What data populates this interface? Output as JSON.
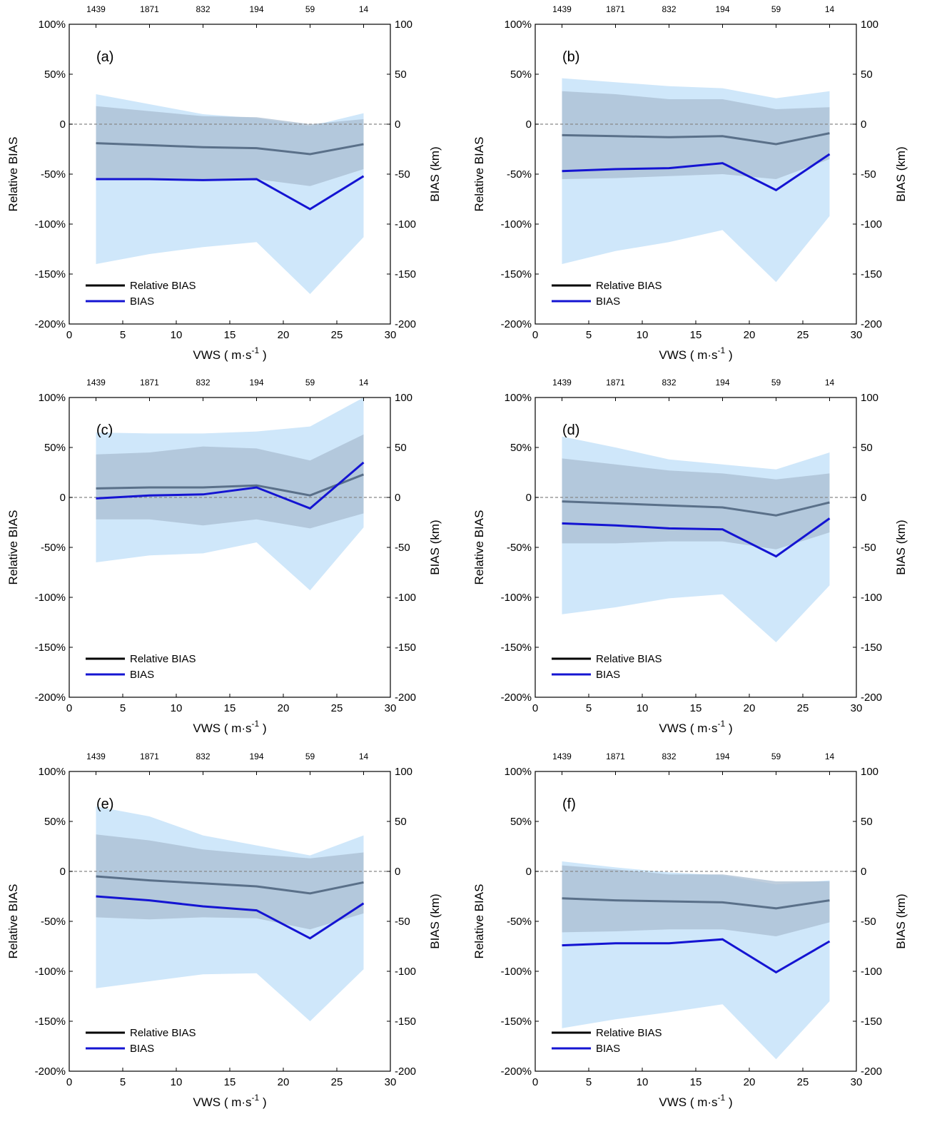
{
  "legend": {
    "relative": "Relative BIAS",
    "bias": "BIAS"
  },
  "colors": {
    "relative_line": "#5a7089",
    "bias_line": "#1414d2",
    "bias_band": "#cfe7fa",
    "relative_band": "#aabdd1",
    "zero_line": "#888888"
  },
  "chart_data": [
    {
      "type": "line",
      "panel_label": "(a)",
      "xlabel": "VWS ( m·s",
      "xlabel_exp": "-1",
      "xlabel_end": ")",
      "ylabel": "Relative BIAS",
      "ylabel_right": "BIAS (km)",
      "xlim": [
        0,
        30
      ],
      "ylim": [
        -200,
        100
      ],
      "ylim_right": [
        -200,
        100
      ],
      "x_ticks": [
        "0",
        "5",
        "10",
        "15",
        "20",
        "25",
        "30"
      ],
      "y_ticks_left": [
        "100%",
        "50%",
        "0",
        "-50%",
        "-100%",
        "-150%",
        "-200%"
      ],
      "y_ticks_right": [
        "100",
        "50",
        "0",
        "-50",
        "-100",
        "-150",
        "-200"
      ],
      "top_ticks": [
        "1439",
        "1871",
        "832",
        "194",
        "59",
        "14"
      ],
      "x": [
        2.5,
        7.5,
        12.5,
        17.5,
        22.5,
        27.5
      ],
      "series": [
        {
          "name": "Relative BIAS",
          "values": [
            -19,
            -21,
            -23,
            -24,
            -30,
            -20
          ],
          "band": [
            [
              -55,
              18
            ],
            [
              -54,
              13
            ],
            [
              -55,
              8
            ],
            [
              -55,
              7
            ],
            [
              -62,
              0
            ],
            [
              -45,
              5
            ]
          ]
        },
        {
          "name": "BIAS",
          "values": [
            -55,
            -55,
            -56,
            -55,
            -85,
            -52
          ],
          "band": [
            [
              -140,
              30
            ],
            [
              -130,
              20
            ],
            [
              -123,
              10
            ],
            [
              -118,
              6
            ],
            [
              -170,
              -2
            ],
            [
              -113,
              11
            ]
          ]
        }
      ]
    },
    {
      "type": "line",
      "panel_label": "(b)",
      "xlabel": "VWS ( m·s",
      "xlabel_exp": "-1",
      "xlabel_end": ")",
      "ylabel": "Relative BIAS",
      "ylabel_right": "BIAS (km)",
      "xlim": [
        0,
        30
      ],
      "ylim": [
        -200,
        100
      ],
      "ylim_right": [
        -200,
        100
      ],
      "x_ticks": [
        "0",
        "5",
        "10",
        "15",
        "20",
        "25",
        "30"
      ],
      "y_ticks_left": [
        "100%",
        "50%",
        "0",
        "-50%",
        "-100%",
        "-150%",
        "-200%"
      ],
      "y_ticks_right": [
        "100",
        "50",
        "0",
        "-50",
        "-100",
        "-150",
        "-200"
      ],
      "top_ticks": [
        "1439",
        "1871",
        "832",
        "194",
        "59",
        "14"
      ],
      "x": [
        2.5,
        7.5,
        12.5,
        17.5,
        22.5,
        27.5
      ],
      "series": [
        {
          "name": "Relative BIAS",
          "values": [
            -11,
            -12,
            -13,
            -12,
            -20,
            -9
          ],
          "band": [
            [
              -55,
              33
            ],
            [
              -54,
              30
            ],
            [
              -52,
              25
            ],
            [
              -50,
              25
            ],
            [
              -55,
              15
            ],
            [
              -35,
              17
            ]
          ]
        },
        {
          "name": "BIAS",
          "values": [
            -47,
            -45,
            -44,
            -39,
            -66,
            -30
          ],
          "band": [
            [
              -140,
              46
            ],
            [
              -127,
              42
            ],
            [
              -118,
              38
            ],
            [
              -106,
              36
            ],
            [
              -158,
              26
            ],
            [
              -92,
              33
            ]
          ]
        }
      ]
    },
    {
      "type": "line",
      "panel_label": "(c)",
      "xlabel": "VWS ( m·s",
      "xlabel_exp": "-1",
      "xlabel_end": ")",
      "ylabel": "Relative BIAS",
      "ylabel_right": "BIAS (km)",
      "xlim": [
        0,
        30
      ],
      "ylim": [
        -200,
        100
      ],
      "ylim_right": [
        -200,
        100
      ],
      "x_ticks": [
        "0",
        "5",
        "10",
        "15",
        "20",
        "25",
        "30"
      ],
      "y_ticks_left": [
        "100%",
        "50%",
        "0",
        "-50%",
        "-100%",
        "-150%",
        "-200%"
      ],
      "y_ticks_right": [
        "100",
        "50",
        "0",
        "-50",
        "-100",
        "-150",
        "-200"
      ],
      "top_ticks": [
        "1439",
        "1871",
        "832",
        "194",
        "59",
        "14"
      ],
      "x": [
        2.5,
        7.5,
        12.5,
        17.5,
        22.5,
        27.5
      ],
      "series": [
        {
          "name": "Relative BIAS",
          "values": [
            9,
            10,
            10,
            12,
            2,
            23
          ],
          "band": [
            [
              -22,
              43
            ],
            [
              -22,
              45
            ],
            [
              -28,
              51
            ],
            [
              -22,
              49
            ],
            [
              -31,
              37
            ],
            [
              -16,
              63
            ]
          ]
        },
        {
          "name": "BIAS",
          "values": [
            -1,
            2,
            3,
            10,
            -11,
            35
          ],
          "band": [
            [
              -65,
              65
            ],
            [
              -58,
              64
            ],
            [
              -56,
              64
            ],
            [
              -45,
              66
            ],
            [
              -93,
              71
            ],
            [
              -30,
              100
            ]
          ]
        }
      ]
    },
    {
      "type": "line",
      "panel_label": "(d)",
      "xlabel": "VWS ( m·s",
      "xlabel_exp": "-1",
      "xlabel_end": ")",
      "ylabel": "Relative BIAS",
      "ylabel_right": "BIAS (km)",
      "xlim": [
        0,
        30
      ],
      "ylim": [
        -200,
        100
      ],
      "ylim_right": [
        -200,
        100
      ],
      "x_ticks": [
        "0",
        "5",
        "10",
        "15",
        "20",
        "25",
        "30"
      ],
      "y_ticks_left": [
        "100%",
        "50%",
        "0",
        "-50%",
        "-100%",
        "-150%",
        "-200%"
      ],
      "y_ticks_right": [
        "100",
        "50",
        "0",
        "-50",
        "-100",
        "-150",
        "-200"
      ],
      "top_ticks": [
        "1439",
        "1871",
        "832",
        "194",
        "59",
        "14"
      ],
      "x": [
        2.5,
        7.5,
        12.5,
        17.5,
        22.5,
        27.5
      ],
      "series": [
        {
          "name": "Relative BIAS",
          "values": [
            -4,
            -6,
            -8,
            -10,
            -18,
            -5
          ],
          "band": [
            [
              -46,
              39
            ],
            [
              -46,
              33
            ],
            [
              -44,
              27
            ],
            [
              -44,
              24
            ],
            [
              -52,
              18
            ],
            [
              -35,
              24
            ]
          ]
        },
        {
          "name": "BIAS",
          "values": [
            -26,
            -28,
            -31,
            -32,
            -59,
            -21
          ],
          "band": [
            [
              -117,
              61
            ],
            [
              -110,
              50
            ],
            [
              -101,
              38
            ],
            [
              -97,
              33
            ],
            [
              -145,
              28
            ],
            [
              -88,
              45
            ]
          ]
        }
      ]
    },
    {
      "type": "line",
      "panel_label": "(e)",
      "xlabel": "VWS ( m·s",
      "xlabel_exp": "-1",
      "xlabel_end": ")",
      "ylabel": "Relative BIAS",
      "ylabel_right": "BIAS (km)",
      "xlim": [
        0,
        30
      ],
      "ylim": [
        -200,
        100
      ],
      "ylim_right": [
        -200,
        100
      ],
      "x_ticks": [
        "0",
        "5",
        "10",
        "15",
        "20",
        "25",
        "30"
      ],
      "y_ticks_left": [
        "100%",
        "50%",
        "0",
        "-50%",
        "-100%",
        "-150%",
        "-200%"
      ],
      "y_ticks_right": [
        "100",
        "50",
        "0",
        "-50",
        "-100",
        "-150",
        "-200"
      ],
      "top_ticks": [
        "1439",
        "1871",
        "832",
        "194",
        "59",
        "14"
      ],
      "x": [
        2.5,
        7.5,
        12.5,
        17.5,
        22.5,
        27.5
      ],
      "series": [
        {
          "name": "Relative BIAS",
          "values": [
            -5,
            -9,
            -12,
            -15,
            -22,
            -11
          ],
          "band": [
            [
              -46,
              37
            ],
            [
              -48,
              31
            ],
            [
              -46,
              22
            ],
            [
              -47,
              17
            ],
            [
              -58,
              13
            ],
            [
              -42,
              19
            ]
          ]
        },
        {
          "name": "BIAS",
          "values": [
            -25,
            -29,
            -35,
            -39,
            -67,
            -32
          ],
          "band": [
            [
              -117,
              65
            ],
            [
              -110,
              55
            ],
            [
              -103,
              36
            ],
            [
              -102,
              26
            ],
            [
              -150,
              16
            ],
            [
              -98,
              36
            ]
          ]
        }
      ]
    },
    {
      "type": "line",
      "panel_label": "(f)",
      "xlabel": "VWS ( m·s",
      "xlabel_exp": "-1",
      "xlabel_end": ")",
      "ylabel": "Relative BIAS",
      "ylabel_right": "BIAS (km)",
      "xlim": [
        0,
        30
      ],
      "ylim": [
        -200,
        100
      ],
      "ylim_right": [
        -200,
        100
      ],
      "x_ticks": [
        "0",
        "5",
        "10",
        "15",
        "20",
        "25",
        "30"
      ],
      "y_ticks_left": [
        "100%",
        "50%",
        "0",
        "-50%",
        "-100%",
        "-150%",
        "-200%"
      ],
      "y_ticks_right": [
        "100",
        "50",
        "0",
        "-50",
        "-100",
        "-150",
        "-200"
      ],
      "top_ticks": [
        "1439",
        "1871",
        "832",
        "194",
        "59",
        "14"
      ],
      "x": [
        2.5,
        7.5,
        12.5,
        17.5,
        22.5,
        27.5
      ],
      "series": [
        {
          "name": "Relative BIAS",
          "values": [
            -27,
            -29,
            -30,
            -31,
            -37,
            -29
          ],
          "band": [
            [
              -61,
              6
            ],
            [
              -60,
              2
            ],
            [
              -58,
              -3
            ],
            [
              -58,
              -3
            ],
            [
              -65,
              -10
            ],
            [
              -51,
              -10
            ]
          ]
        },
        {
          "name": "BIAS",
          "values": [
            -74,
            -72,
            -72,
            -68,
            -101,
            -70
          ],
          "band": [
            [
              -157,
              10
            ],
            [
              -148,
              4
            ],
            [
              -141,
              -1
            ],
            [
              -133,
              -4
            ],
            [
              -188,
              -13
            ],
            [
              -130,
              -9
            ]
          ]
        }
      ]
    }
  ]
}
